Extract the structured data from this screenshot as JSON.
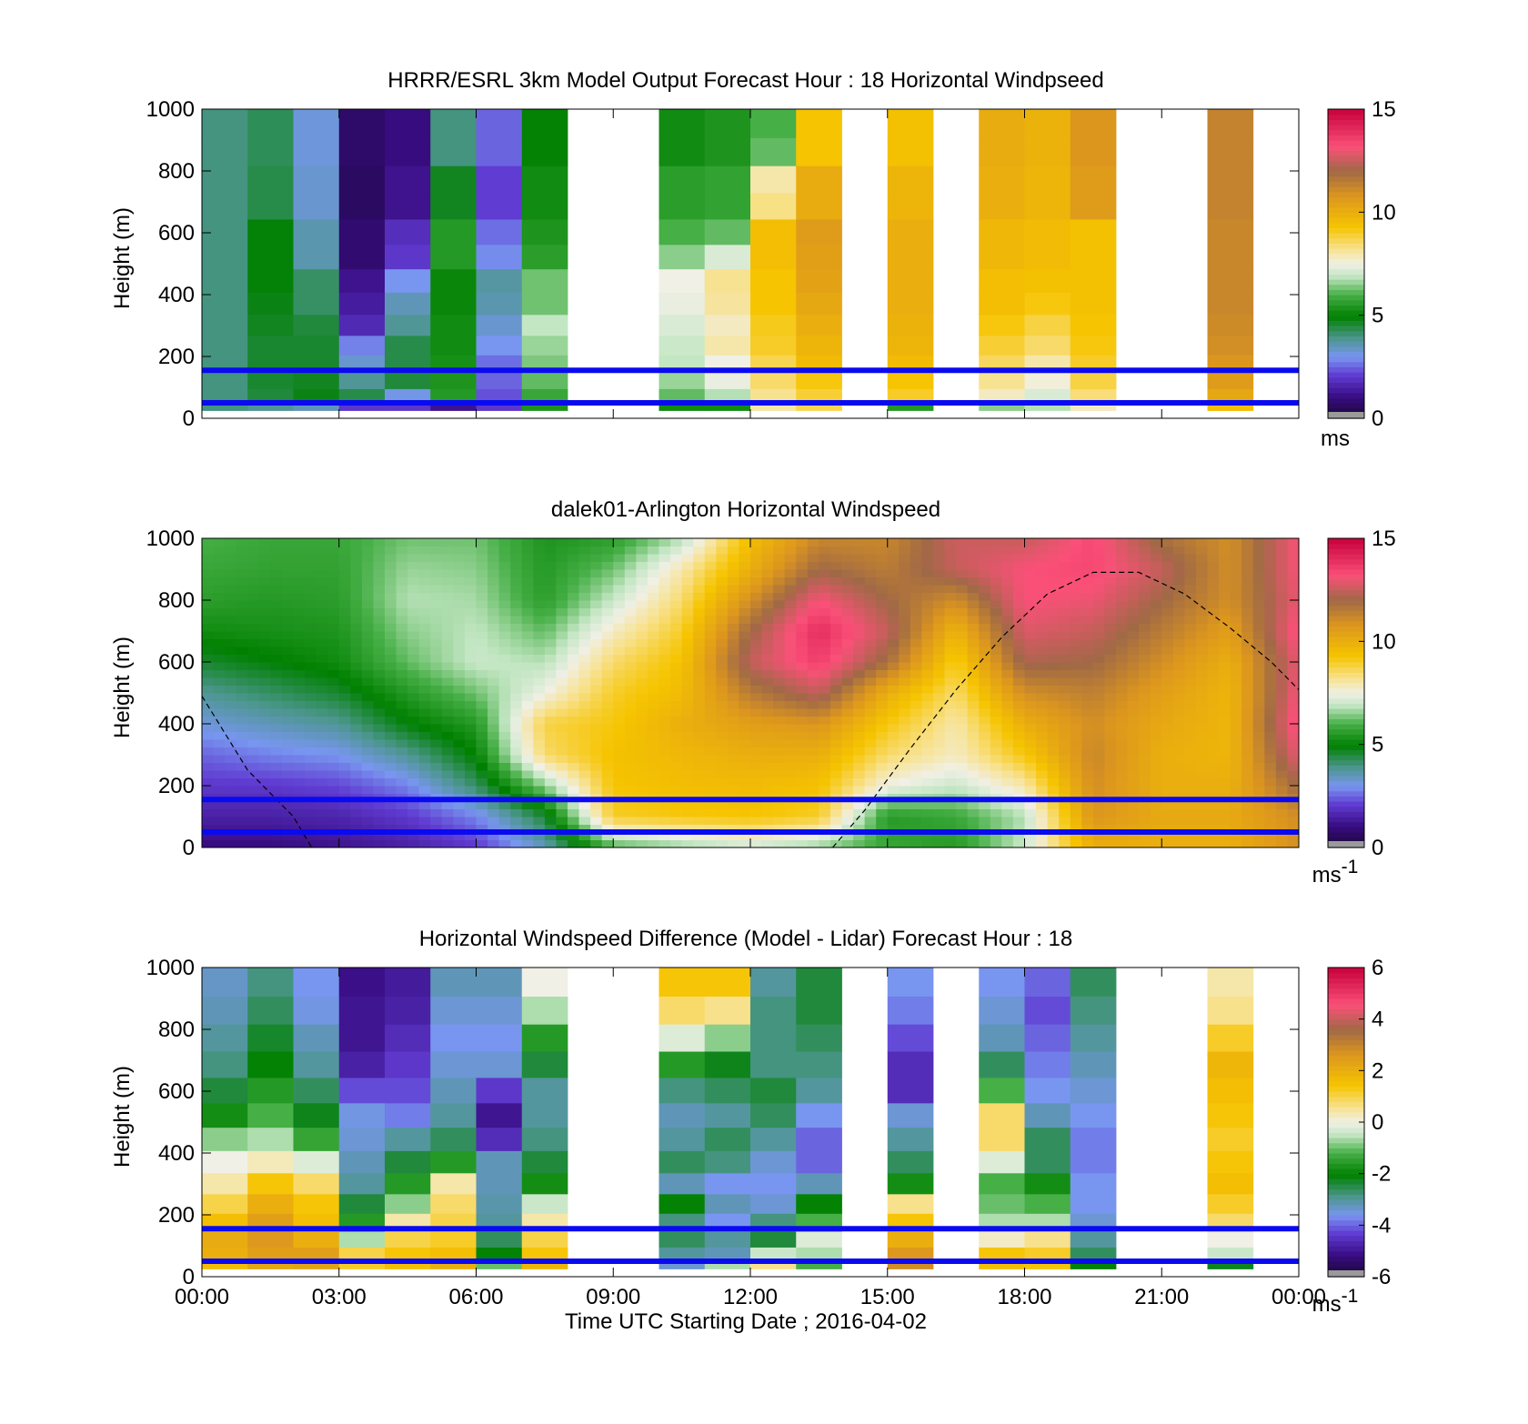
{
  "chart_data": [
    {
      "type": "heatmap",
      "title": "HRRR/ESRL 3km Model Output   Forecast Hour : 18 Horizontal Windpseed",
      "ylabel": "Height (m)",
      "y_ticks": [
        "0",
        "200",
        "400",
        "600",
        "800",
        "1000"
      ],
      "ylim": [
        0,
        1000
      ],
      "xlim_hours": [
        0,
        24
      ],
      "show_x_tick_labels": false,
      "colorbar": {
        "ticks": [
          "0",
          "5",
          "10",
          "15"
        ],
        "range": [
          0,
          15
        ],
        "unit": "ms",
        "unit_sup": ""
      },
      "colormap": "speed",
      "reference_lines_m": [
        50,
        155
      ],
      "reference_line_color": "#0a0af0",
      "columns": [
        {
          "hour": 0.5,
          "min_m": 25,
          "values": [
            4,
            4,
            4,
            4,
            4,
            4,
            4,
            4,
            4,
            4,
            4,
            4,
            4,
            4
          ]
        },
        {
          "hour": 1.5,
          "min_m": 25,
          "values": [
            3.8,
            4.5,
            4.6,
            4.6,
            4.6,
            4.7,
            4.8,
            4.9,
            4.9,
            4.9,
            4.4,
            4.4,
            4.3,
            4.3
          ]
        },
        {
          "hour": 2.5,
          "min_m": 25,
          "values": [
            3.5,
            4.8,
            4.7,
            4.6,
            4.6,
            4.5,
            4.2,
            4.2,
            3.6,
            3.6,
            3.3,
            3.3,
            3.2,
            3.2
          ]
        },
        {
          "hour": 3.5,
          "min_m": 25,
          "values": [
            2.0,
            4.4,
            3.8,
            3.3,
            2.8,
            1.7,
            1.4,
            1.2,
            0.8,
            0.8,
            0.6,
            0.6,
            0.7,
            0.7
          ]
        },
        {
          "hour": 4.5,
          "min_m": 25,
          "values": [
            2.0,
            3.1,
            4.5,
            4.4,
            4.4,
            3.8,
            3.5,
            3.0,
            2.0,
            1.8,
            1.2,
            1.2,
            1.0,
            1.0
          ]
        },
        {
          "hour": 5.5,
          "min_m": 25,
          "values": [
            1.2,
            5.5,
            5.4,
            5.3,
            5.2,
            5.2,
            5.1,
            5.1,
            5.5,
            5.5,
            4.7,
            4.7,
            4.0,
            4.0
          ]
        },
        {
          "hour": 6.5,
          "min_m": 25,
          "values": [
            2.0,
            2.3,
            2.5,
            2.6,
            3.0,
            3.3,
            3.6,
            3.7,
            2.9,
            2.6,
            2.1,
            2.1,
            2.5,
            2.5
          ]
        },
        {
          "hour": 7.5,
          "min_m": 25,
          "values": [
            5.4,
            5.8,
            6.2,
            6.4,
            6.6,
            6.9,
            6.3,
            6.3,
            5.6,
            5.4,
            5.2,
            5.2,
            5.0,
            5.0
          ]
        },
        {
          "hour": 10.5,
          "min_m": 25,
          "values": [
            5.2,
            6.2,
            6.6,
            6.9,
            7.0,
            7.2,
            7.4,
            7.5,
            6.5,
            6.0,
            5.6,
            5.6,
            5.2,
            5.2
          ]
        },
        {
          "hour": 11.5,
          "min_m": 25,
          "values": [
            5.2,
            6.8,
            7.4,
            7.5,
            8.0,
            7.8,
            8.1,
            8.2,
            7.2,
            6.2,
            5.7,
            5.7,
            5.4,
            5.4
          ]
        },
        {
          "hour": 12.5,
          "min_m": 25,
          "values": [
            8.0,
            8.2,
            8.5,
            8.7,
            9.0,
            9.1,
            9.3,
            9.3,
            9.5,
            9.5,
            8.3,
            8.0,
            6.2,
            6.0
          ]
        },
        {
          "hour": 13.5,
          "min_m": 25,
          "values": [
            8.7,
            8.9,
            9.2,
            9.6,
            9.8,
            10.0,
            10.2,
            10.4,
            10.5,
            10.6,
            10.1,
            10.1,
            9.3,
            9.3
          ]
        },
        {
          "hour": 15.5,
          "min_m": 25,
          "values": [
            5.5,
            9.0,
            9.3,
            9.6,
            9.8,
            9.9,
            10.0,
            10.0,
            10.0,
            10.0,
            9.8,
            9.8,
            9.4,
            9.4
          ]
        },
        {
          "hour": 17.5,
          "min_m": 25,
          "values": [
            6.5,
            7.8,
            8.2,
            8.6,
            8.9,
            9.2,
            9.5,
            9.5,
            9.7,
            9.7,
            10.0,
            10.0,
            10.1,
            10.1
          ]
        },
        {
          "hour": 18.5,
          "min_m": 25,
          "values": [
            6.8,
            7.2,
            7.6,
            8.0,
            8.5,
            8.8,
            9.2,
            9.4,
            9.6,
            9.6,
            9.8,
            9.8,
            9.9,
            9.9
          ]
        },
        {
          "hour": 19.5,
          "min_m": 25,
          "values": [
            7.8,
            8.4,
            8.8,
            9.0,
            9.2,
            9.3,
            9.4,
            9.4,
            9.4,
            9.4,
            10.6,
            10.6,
            10.8,
            10.8
          ]
        },
        {
          "hour": 22.5,
          "min_m": 25,
          "values": [
            9.5,
            10.2,
            10.6,
            10.8,
            11.0,
            11.1,
            11.2,
            11.2,
            11.2,
            11.2,
            11.3,
            11.3,
            11.3,
            11.3
          ]
        }
      ]
    },
    {
      "type": "heatmap",
      "title": "dalek01-Arlington  Horizontal Windspeed",
      "ylabel": "Height (m)",
      "y_ticks": [
        "0",
        "200",
        "400",
        "600",
        "800",
        "1000"
      ],
      "ylim": [
        0,
        1000
      ],
      "xlim_hours": [
        0,
        24
      ],
      "show_x_tick_labels": false,
      "colorbar": {
        "ticks": [
          "0",
          "5",
          "10",
          "15"
        ],
        "range": [
          0,
          15
        ],
        "unit": "ms",
        "unit_sup": "-1"
      },
      "colormap": "speed",
      "reference_lines_m": [
        50,
        155
      ],
      "reference_line_color": "#0a0af0",
      "field_keyframes": {
        "hours": [
          0,
          1.5,
          3,
          4.5,
          6,
          7.5,
          9,
          10.5,
          12,
          13.5,
          15,
          16.5,
          18,
          19.5,
          21,
          22.5,
          24
        ],
        "heights_m": [
          0,
          100,
          200,
          300,
          400,
          500,
          600,
          700,
          800,
          900,
          1000
        ],
        "values": [
          [
            1.0,
            1.5,
            2.0,
            2.5,
            3.2,
            3.8,
            4.6,
            5.2,
            5.6,
            5.8,
            6.0
          ],
          [
            1.0,
            1.5,
            2.0,
            2.8,
            3.5,
            4.2,
            4.9,
            5.3,
            5.5,
            5.7,
            5.8
          ],
          [
            1.2,
            1.6,
            2.2,
            3.0,
            3.8,
            4.6,
            5.2,
            5.4,
            5.6,
            5.7,
            5.8
          ],
          [
            1.5,
            2.0,
            2.8,
            3.8,
            4.9,
            5.5,
            6.2,
            6.5,
            6.8,
            6.6,
            6.3
          ],
          [
            2.0,
            2.8,
            4.2,
            5.0,
            5.5,
            6.3,
            7.0,
            6.9,
            6.7,
            6.5,
            6.3
          ],
          [
            3.5,
            4.5,
            6.5,
            8.5,
            8.8,
            7.5,
            6.8,
            6.2,
            5.6,
            5.5,
            5.4
          ],
          [
            6.0,
            9.0,
            9.3,
            9.4,
            9.2,
            9.0,
            8.5,
            7.8,
            7.0,
            6.3,
            5.6
          ],
          [
            6.5,
            9.2,
            9.5,
            9.7,
            10.0,
            9.6,
            9.4,
            9.0,
            8.5,
            8.0,
            6.8
          ],
          [
            7.0,
            9.3,
            9.6,
            10.0,
            10.5,
            11.5,
            12.5,
            12.0,
            11.0,
            10.0,
            9.5
          ],
          [
            6.5,
            9.0,
            9.4,
            10.0,
            10.8,
            12.5,
            13.6,
            14.0,
            13.2,
            12.0,
            11.2
          ],
          [
            5.8,
            5.5,
            7.5,
            8.5,
            9.2,
            10.0,
            11.8,
            12.5,
            12.0,
            11.5,
            11.2
          ],
          [
            5.5,
            5.8,
            7.0,
            7.8,
            8.0,
            8.5,
            9.0,
            9.8,
            11.0,
            12.5,
            12.6
          ],
          [
            7.0,
            6.8,
            8.0,
            9.2,
            10.0,
            11.0,
            12.2,
            12.8,
            13.2,
            13.2,
            12.5
          ],
          [
            10.0,
            10.8,
            11.0,
            11.2,
            11.0,
            11.4,
            12.0,
            12.5,
            13.0,
            13.4,
            13.4
          ],
          [
            10.0,
            10.2,
            10.0,
            10.0,
            10.2,
            10.5,
            11.0,
            11.5,
            12.0,
            12.5,
            11.8
          ],
          [
            10.0,
            10.2,
            10.0,
            9.8,
            9.8,
            9.8,
            10.0,
            10.5,
            11.0,
            11.0,
            11.0
          ],
          [
            11.0,
            11.0,
            12.0,
            13.0,
            13.5,
            13.2,
            13.0,
            13.4,
            13.0,
            13.2,
            13.2
          ]
        ]
      },
      "blh_curve_m": [
        [
          0,
          490
        ],
        [
          1,
          250
        ],
        [
          2,
          100
        ],
        [
          2.4,
          0
        ],
        [
          13.8,
          0
        ],
        [
          14.5,
          120
        ],
        [
          15.5,
          320
        ],
        [
          16.5,
          510
        ],
        [
          17.5,
          680
        ],
        [
          18.5,
          820
        ],
        [
          19.5,
          890
        ],
        [
          20.5,
          890
        ],
        [
          21.5,
          820
        ],
        [
          22.5,
          710
        ],
        [
          23.4,
          600
        ],
        [
          24,
          510
        ]
      ]
    },
    {
      "type": "heatmap",
      "title": "Horizontal Windspeed Difference (Model - Lidar) Forecast Hour : 18",
      "ylabel": "Height (m)",
      "xlabel": "Time UTC  Starting Date ; 2016-04-02",
      "x_ticks": [
        "00:00",
        "03:00",
        "06:00",
        "09:00",
        "12:00",
        "15:00",
        "18:00",
        "21:00",
        "00:00"
      ],
      "y_ticks": [
        "0",
        "200",
        "400",
        "600",
        "800",
        "1000"
      ],
      "ylim": [
        0,
        1000
      ],
      "xlim_hours": [
        0,
        24
      ],
      "show_x_tick_labels": true,
      "colorbar": {
        "ticks": [
          "-6",
          "-4",
          "-2",
          "0",
          "2",
          "4",
          "6"
        ],
        "range": [
          -6,
          6
        ],
        "unit": "ms",
        "unit_sup": "-1"
      },
      "colormap": "diff",
      "reference_lines_m": [
        50,
        155
      ],
      "reference_line_color": "#0a0af0",
      "columns": [
        {
          "hour": 0.5,
          "min_m": 25,
          "values": [
            1.6,
            2.0,
            2.1,
            1.6,
            1.0,
            0.4,
            0.0,
            -0.8,
            -1.8,
            -2.4,
            -2.8,
            -3.0,
            -3.2,
            -3.3
          ]
        },
        {
          "hour": 1.5,
          "min_m": 25,
          "values": [
            2.2,
            2.4,
            2.6,
            2.4,
            2.0,
            1.4,
            0.3,
            -0.6,
            -1.2,
            -1.6,
            -2.0,
            -2.3,
            -2.6,
            -2.8
          ]
        },
        {
          "hour": 2.5,
          "min_m": 25,
          "values": [
            2.3,
            2.4,
            2.0,
            1.6,
            1.4,
            0.8,
            -0.2,
            -1.4,
            -2.2,
            -2.6,
            -3.0,
            -3.2,
            -3.5,
            -3.6
          ]
        },
        {
          "hour": 3.5,
          "min_m": 25,
          "values": [
            1.2,
            1.0,
            -0.6,
            -1.6,
            -2.4,
            -3.0,
            -3.2,
            -3.4,
            -3.5,
            -4.2,
            -4.8,
            -5.0,
            -5.0,
            -5.1
          ]
        },
        {
          "hour": 4.5,
          "min_m": 25,
          "values": [
            1.6,
            1.4,
            1.0,
            0.4,
            -0.8,
            -1.6,
            -2.4,
            -3.0,
            -3.8,
            -4.2,
            -4.4,
            -4.6,
            -4.8,
            -4.9
          ]
        },
        {
          "hour": 5.5,
          "min_m": 25,
          "values": [
            2.0,
            1.6,
            1.2,
            1.0,
            0.8,
            0.4,
            -1.6,
            -2.6,
            -3.0,
            -3.2,
            -3.4,
            -3.6,
            -3.4,
            -3.2
          ]
        },
        {
          "hour": 6.5,
          "min_m": 25,
          "values": [
            -1.0,
            -2.0,
            -2.6,
            -3.0,
            -3.1,
            -3.2,
            -3.2,
            -4.6,
            -5.0,
            -4.4,
            -3.4,
            -3.6,
            -3.4,
            -3.2
          ]
        },
        {
          "hour": 7.5,
          "min_m": 25,
          "values": [
            1.8,
            1.4,
            1.0,
            0.4,
            -0.4,
            -1.8,
            -2.4,
            -2.8,
            -3.0,
            -3.0,
            -2.4,
            -1.6,
            -0.6,
            0.0
          ]
        },
        {
          "hour": 10.5,
          "min_m": 25,
          "values": [
            -3.4,
            -3.0,
            -2.6,
            -2.8,
            -2.0,
            -3.2,
            -2.6,
            -3.0,
            -3.2,
            -2.8,
            -1.6,
            -0.2,
            0.8,
            1.4
          ]
        },
        {
          "hour": 11.5,
          "min_m": 25,
          "values": [
            -0.6,
            -3.2,
            -3.0,
            -3.6,
            -3.2,
            -3.6,
            -2.8,
            -2.6,
            -3.0,
            -2.6,
            -2.2,
            -0.8,
            0.6,
            1.4
          ]
        },
        {
          "hour": 12.5,
          "min_m": 25,
          "values": [
            0.6,
            -0.4,
            -2.4,
            -2.8,
            -3.4,
            -3.6,
            -3.4,
            -3.0,
            -2.6,
            -2.4,
            -2.8,
            -2.8,
            -2.8,
            -3.0
          ]
        },
        {
          "hour": 13.5,
          "min_m": 25,
          "values": [
            -1.2,
            -0.6,
            -0.2,
            -1.2,
            -2.0,
            -3.2,
            -4.0,
            -4.0,
            -3.6,
            -3.0,
            -2.8,
            -2.6,
            -2.4,
            -2.4
          ]
        },
        {
          "hour": 15.5,
          "min_m": 25,
          "values": [
            2.8,
            2.6,
            2.0,
            1.4,
            0.6,
            -1.8,
            -2.6,
            -3.0,
            -3.4,
            -4.6,
            -4.6,
            -4.2,
            -3.8,
            -3.6
          ]
        },
        {
          "hour": 17.5,
          "min_m": 25,
          "values": [
            1.6,
            1.4,
            0.2,
            -0.6,
            -1.0,
            -1.2,
            -0.2,
            0.8,
            0.8,
            -1.2,
            -2.6,
            -3.2,
            -3.4,
            -3.6
          ]
        },
        {
          "hour": 18.5,
          "min_m": 25,
          "values": [
            1.4,
            1.2,
            0.6,
            -0.6,
            -1.2,
            -1.8,
            -2.6,
            -2.6,
            -3.2,
            -3.6,
            -3.8,
            -4.0,
            -4.2,
            -4.0
          ]
        },
        {
          "hour": 19.5,
          "min_m": 25,
          "values": [
            -2.0,
            -2.6,
            -3.0,
            -3.4,
            -3.6,
            -3.6,
            -3.8,
            -3.8,
            -3.6,
            -3.4,
            -3.2,
            -3.0,
            -2.8,
            -2.6
          ]
        },
        {
          "hour": 22.5,
          "min_m": 25,
          "values": [
            -2.2,
            -0.4,
            0.0,
            0.8,
            1.2,
            1.6,
            1.4,
            1.2,
            1.4,
            1.6,
            1.8,
            1.2,
            0.6,
            0.4
          ]
        }
      ]
    }
  ]
}
